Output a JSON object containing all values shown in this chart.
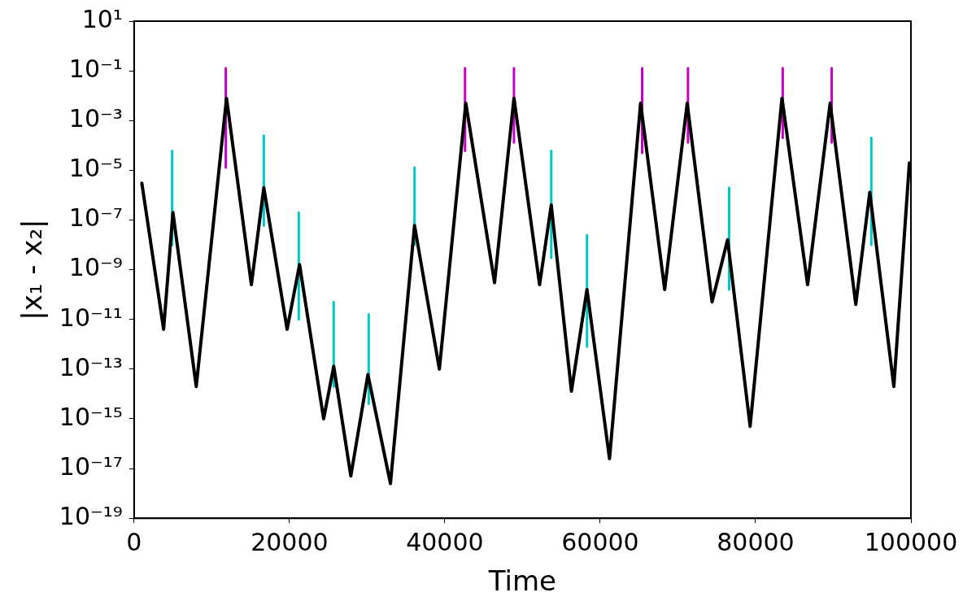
{
  "chart_data": {
    "type": "line",
    "xlabel": "Time",
    "ylabel": "|x₁ - x₂|",
    "log": "y",
    "grid": false,
    "legend": false,
    "marker": "none",
    "line_style": "solid",
    "xlim": [
      0,
      100000
    ],
    "xticks": [
      0,
      20000,
      40000,
      60000,
      80000,
      100000
    ],
    "ylim": [
      1e-19,
      10
    ],
    "yticks": [
      {
        "value": 10,
        "label": "10¹"
      },
      {
        "value": 0.1,
        "label": "10⁻¹"
      },
      {
        "value": 0.001,
        "label": "10⁻³"
      },
      {
        "value": 1e-05,
        "label": "10⁻⁵"
      },
      {
        "value": 1e-07,
        "label": "10⁻⁷"
      },
      {
        "value": 1e-09,
        "label": "10⁻⁹"
      },
      {
        "value": 1e-11,
        "label": "10⁻¹¹"
      },
      {
        "value": 1e-13,
        "label": "10⁻¹³"
      },
      {
        "value": 1e-15,
        "label": "10⁻¹⁵"
      },
      {
        "value": 1e-17,
        "label": "10⁻¹⁷"
      },
      {
        "value": 1e-19,
        "label": "10⁻¹⁹"
      }
    ],
    "series": [
      {
        "color": "#000000",
        "x": [
          1000,
          3800,
          5000,
          8000,
          11900,
          15100,
          16700,
          19700,
          21300,
          24400,
          25700,
          27900,
          30100,
          33000,
          36100,
          39300,
          42700,
          46400,
          48900,
          52200,
          53700,
          56300,
          58300,
          61200,
          65200,
          68300,
          71200,
          74400,
          76400,
          79300,
          83400,
          86700,
          89600,
          92900,
          94700,
          97800,
          99800
        ],
        "values": [
          3e-06,
          4e-12,
          2e-07,
          2e-14,
          0.008,
          2.5e-10,
          2e-06,
          4e-12,
          1.6e-09,
          1e-15,
          1.3e-13,
          5e-18,
          6e-14,
          2.5e-18,
          6e-08,
          1e-13,
          0.005,
          3e-10,
          0.008,
          2.5e-10,
          4e-07,
          1.3e-14,
          1.6e-10,
          2.5e-17,
          0.005,
          1.6e-10,
          0.005,
          5e-11,
          1.6e-08,
          5e-16,
          0.008,
          2.5e-10,
          0.005,
          4e-11,
          1.3e-06,
          2e-14,
          2e-05
        ]
      },
      {
        "color": "#00c8c8",
        "x": [
          4900,
          4900,
          4901,
          16700,
          16700,
          16701,
          21200,
          21200,
          21201,
          25700,
          25700,
          25701,
          30200,
          30200,
          30201,
          36100,
          36100,
          36101,
          53700,
          53700,
          53701,
          58300,
          58300,
          58301,
          76600,
          76600,
          76601,
          94900,
          94900
        ],
        "values": [
          6e-05,
          1e-08,
          null,
          0.00025,
          6e-08,
          null,
          2e-07,
          1e-11,
          null,
          5e-11,
          2e-14,
          null,
          1.6e-11,
          4e-15,
          null,
          1.3e-05,
          1e-08,
          null,
          6e-05,
          3e-09,
          null,
          2.5e-08,
          8e-13,
          null,
          2e-06,
          1.6e-10,
          null,
          0.0002,
          1e-08
        ]
      },
      {
        "color": "#c800c8",
        "x": [
          11800,
          11800,
          11801,
          42600,
          42600,
          42601,
          48900,
          48900,
          48901,
          65400,
          65400,
          65401,
          71300,
          71300,
          71301,
          83500,
          83500,
          83501,
          89800,
          89800
        ],
        "values": [
          0.13,
          1.3e-05,
          null,
          0.13,
          6e-05,
          null,
          0.13,
          0.00013,
          null,
          0.13,
          5e-05,
          null,
          0.13,
          0.00013,
          null,
          0.13,
          0.0002,
          null,
          0.13,
          0.00013
        ]
      }
    ]
  }
}
